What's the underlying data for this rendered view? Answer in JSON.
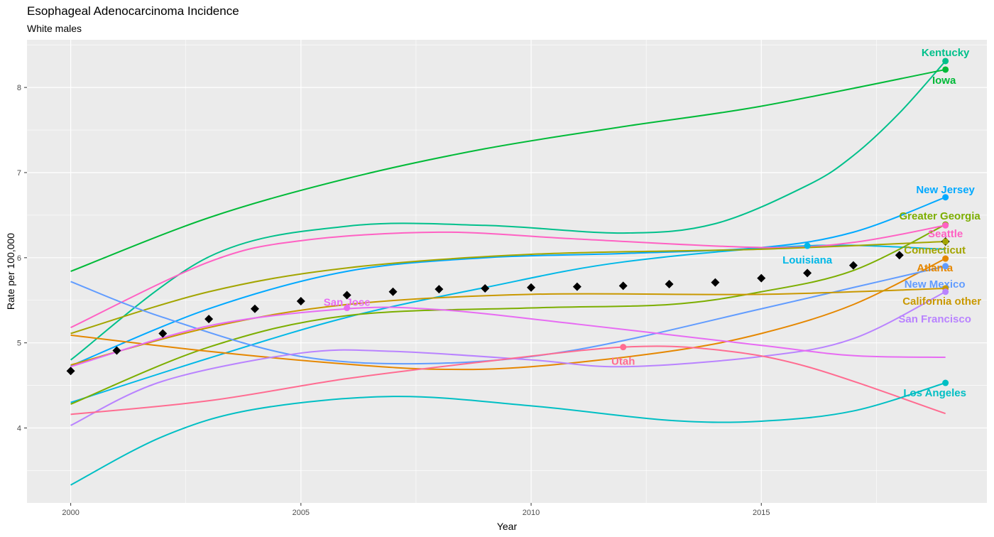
{
  "chart_data": {
    "type": "line",
    "title": "Esophageal Adenocarcinoma Incidence",
    "subtitle": "White males",
    "xlabel": "Year",
    "ylabel": "Rate per 100,000",
    "xlim": [
      1999.05,
      2019.9
    ],
    "ylim": [
      3.12,
      8.56
    ],
    "xticks": [
      2000,
      2005,
      2010,
      2015
    ],
    "yticks": [
      4,
      5,
      6,
      7,
      8
    ],
    "grid": true,
    "legend": "none (direct labels)",
    "mean_points": {
      "x": [
        2000,
        2001,
        2002,
        2003,
        2004,
        2005,
        2006,
        2007,
        2008,
        2009,
        2010,
        2011,
        2012,
        2013,
        2014,
        2015,
        2016,
        2017,
        2018,
        2019
      ],
      "y": [
        4.67,
        4.91,
        5.11,
        5.28,
        5.4,
        5.49,
        5.56,
        5.6,
        5.63,
        5.64,
        5.65,
        5.66,
        5.67,
        5.69,
        5.71,
        5.76,
        5.82,
        5.91,
        6.03,
        6.19
      ]
    },
    "series": [
      {
        "name": "Kentucky",
        "color": "#00C08B",
        "x": [
          2000,
          2003,
          2006,
          2009,
          2012,
          2014,
          2016,
          2017,
          2018,
          2019
        ],
        "y": [
          4.8,
          6.01,
          6.37,
          6.38,
          6.29,
          6.4,
          6.85,
          7.2,
          7.7,
          8.31
        ],
        "label_point": [
          2019,
          8.31
        ]
      },
      {
        "name": "Iowa",
        "color": "#00BA38",
        "x": [
          2000,
          2003,
          2006,
          2009,
          2012,
          2015,
          2019
        ],
        "y": [
          5.84,
          6.47,
          6.93,
          7.28,
          7.54,
          7.78,
          8.21
        ],
        "label_point": [
          2019,
          8.21
        ]
      },
      {
        "name": "New Jersey",
        "color": "#00A9FF",
        "x": [
          2000,
          2003,
          2006,
          2009,
          2012,
          2015,
          2017,
          2019
        ],
        "y": [
          4.73,
          5.4,
          5.84,
          6.0,
          6.05,
          6.12,
          6.3,
          6.71
        ],
        "label_point": [
          2019,
          6.71
        ]
      },
      {
        "name": "Louisiana",
        "color": "#00B8E7",
        "x": [
          2000,
          2003,
          2006,
          2009,
          2012,
          2016,
          2019
        ],
        "y": [
          4.3,
          4.82,
          5.3,
          5.65,
          5.95,
          6.14,
          6.1
        ],
        "label_point": [
          2016,
          6.14
        ]
      },
      {
        "name": "Greater Georgia",
        "color": "#7CAE00",
        "x": [
          2000,
          2003,
          2006,
          2010,
          2013,
          2015,
          2017,
          2019
        ],
        "y": [
          4.28,
          4.95,
          5.32,
          5.41,
          5.45,
          5.6,
          5.85,
          6.39
        ],
        "label_point": [
          2019,
          6.39
        ]
      },
      {
        "name": "Seattle",
        "color": "#FF61C3",
        "x": [
          2000,
          2003,
          2005,
          2008,
          2011,
          2015,
          2017,
          2019
        ],
        "y": [
          5.18,
          5.95,
          6.2,
          6.3,
          6.22,
          6.12,
          6.18,
          6.38
        ],
        "label_point": [
          2019,
          6.38
        ]
      },
      {
        "name": "Connecticut",
        "color": "#A3A500",
        "x": [
          2000,
          2003,
          2006,
          2010,
          2015,
          2019
        ],
        "y": [
          5.11,
          5.6,
          5.88,
          6.04,
          6.1,
          6.19
        ],
        "label_point": [
          2019,
          6.19
        ]
      },
      {
        "name": "Atlanta",
        "color": "#E58700",
        "x": [
          2000,
          2003,
          2006,
          2008,
          2010,
          2013,
          2015,
          2017,
          2019
        ],
        "y": [
          5.09,
          4.9,
          4.75,
          4.69,
          4.72,
          4.9,
          5.11,
          5.45,
          5.99
        ],
        "label_point": [
          2019,
          5.99
        ]
      },
      {
        "name": "New Mexico",
        "color": "#619CFF",
        "x": [
          2000,
          2002,
          2005,
          2008,
          2011,
          2015,
          2017,
          2019
        ],
        "y": [
          5.72,
          5.3,
          4.84,
          4.76,
          4.92,
          5.4,
          5.65,
          5.9
        ],
        "label_point": [
          2019,
          5.9
        ]
      },
      {
        "name": "California other",
        "color": "#C99800",
        "x": [
          2000,
          2003,
          2006,
          2010,
          2015,
          2019
        ],
        "y": [
          4.74,
          5.18,
          5.45,
          5.57,
          5.57,
          5.64
        ],
        "label_point": [
          2019,
          5.64
        ]
      },
      {
        "name": "San Francisco",
        "color": "#B983FF",
        "x": [
          2000,
          2002,
          2005,
          2007,
          2010,
          2012,
          2015,
          2017,
          2019
        ],
        "y": [
          4.03,
          4.55,
          4.88,
          4.9,
          4.8,
          4.72,
          4.84,
          5.05,
          5.6
        ],
        "label_point": [
          2019,
          5.6
        ]
      },
      {
        "name": "San Jose",
        "color": "#E76BF3",
        "x": [
          2000,
          2003,
          2006,
          2008,
          2011,
          2015,
          2017,
          2019
        ],
        "y": [
          4.72,
          5.2,
          5.4,
          5.39,
          5.22,
          4.97,
          4.85,
          4.83
        ],
        "label_point": [
          2006,
          5.41
        ]
      },
      {
        "name": "Utah",
        "color": "#FF6C91",
        "x": [
          2000,
          2003,
          2006,
          2009,
          2012,
          2014,
          2016,
          2019
        ],
        "y": [
          4.16,
          4.32,
          4.58,
          4.78,
          4.95,
          4.92,
          4.72,
          4.17
        ],
        "label_point": [
          2012,
          4.95
        ]
      },
      {
        "name": "Los Angeles",
        "color": "#00BFC4",
        "x": [
          2000,
          2002,
          2004,
          2007,
          2010,
          2013,
          2015,
          2017,
          2019
        ],
        "y": [
          3.33,
          3.9,
          4.22,
          4.37,
          4.26,
          4.09,
          4.08,
          4.2,
          4.53
        ],
        "label_point": [
          2019,
          4.53
        ]
      }
    ]
  }
}
